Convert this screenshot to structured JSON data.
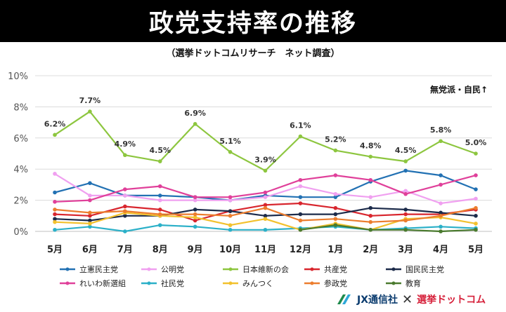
{
  "header": {
    "title": "政党支持率の推移",
    "subtitle": "（選挙ドットコムリサーチ　ネット調査）"
  },
  "chart_data": {
    "type": "line",
    "title": "政党支持率の推移",
    "subtitle": "（選挙ドットコムリサーチ　ネット調査）",
    "categories": [
      "5月",
      "6月",
      "7月",
      "8月",
      "9月",
      "10月",
      "11月",
      "12月",
      "1月",
      "2月",
      "3月",
      "4月",
      "5月"
    ],
    "y_ticks": [
      "0%",
      "2%",
      "4%",
      "6%",
      "8%",
      "10%"
    ],
    "ylim": [
      0,
      10
    ],
    "grid": true,
    "legend_position": "bottom",
    "annotation": "無党派・自民↑",
    "series": [
      {
        "name": "立憲民主党",
        "color": "#2271b3",
        "values": [
          2.5,
          3.1,
          2.3,
          2.3,
          2.2,
          2.0,
          2.3,
          2.2,
          2.2,
          3.2,
          3.9,
          3.6,
          2.7
        ]
      },
      {
        "name": "公明党",
        "color": "#f0a0f0",
        "values": [
          3.7,
          2.3,
          2.3,
          2.0,
          2.0,
          2.0,
          2.2,
          2.9,
          2.4,
          2.2,
          2.6,
          1.8,
          2.1
        ]
      },
      {
        "name": "日本維新の会",
        "color": "#8dc63f",
        "values": [
          6.2,
          7.7,
          4.9,
          4.5,
          6.9,
          5.1,
          3.9,
          6.1,
          5.2,
          4.8,
          4.5,
          5.8,
          5.0
        ],
        "labels": [
          "6.2%",
          "7.7%",
          "4.9%",
          "4.5%",
          "6.9%",
          "5.1%",
          "3.9%",
          "6.1%",
          "5.2%",
          "4.8%",
          "4.5%",
          "5.8%",
          "5.0%"
        ]
      },
      {
        "name": "共産党",
        "color": "#d8262e",
        "values": [
          1.1,
          1.0,
          1.6,
          1.4,
          0.7,
          1.3,
          1.7,
          1.8,
          1.5,
          1.0,
          1.1,
          1.1,
          1.4
        ]
      },
      {
        "name": "国民民主党",
        "color": "#1c2b4a",
        "values": [
          0.8,
          0.7,
          1.0,
          1.0,
          1.4,
          1.3,
          1.0,
          1.1,
          1.1,
          1.5,
          1.4,
          1.2,
          1.0
        ]
      },
      {
        "name": "れいわ新選組",
        "color": "#e0409a",
        "values": [
          1.9,
          2.0,
          2.7,
          2.9,
          2.2,
          2.2,
          2.5,
          3.3,
          3.6,
          3.3,
          2.4,
          3.0,
          3.6
        ]
      },
      {
        "name": "社民党",
        "color": "#2bb0c8",
        "values": [
          0.1,
          0.3,
          0.0,
          0.4,
          0.3,
          0.1,
          0.1,
          0.2,
          0.3,
          0.1,
          0.2,
          0.3,
          0.2
        ]
      },
      {
        "name": "みんつく",
        "color": "#f2c12e",
        "values": [
          0.6,
          0.5,
          1.2,
          1.0,
          0.9,
          0.4,
          0.8,
          0.1,
          0.5,
          0.1,
          0.8,
          0.9,
          0.5
        ]
      },
      {
        "name": "参政党",
        "color": "#ec7d2e",
        "values": [
          1.4,
          1.2,
          1.3,
          1.1,
          1.1,
          1.0,
          1.5,
          0.7,
          0.8,
          0.6,
          0.7,
          1.0,
          1.5
        ]
      },
      {
        "name": "教育",
        "color": "#4a7a2e",
        "values": [
          null,
          null,
          null,
          null,
          null,
          null,
          null,
          0.1,
          0.4,
          0.1,
          0.1,
          0.0,
          0.1
        ]
      }
    ]
  },
  "footer": {
    "brand1": "JX通信社",
    "separator": "✕",
    "brand2": "選挙ドットコム",
    "brand1_color": "#0a3b6e",
    "brand2_color": "#d6203a"
  }
}
